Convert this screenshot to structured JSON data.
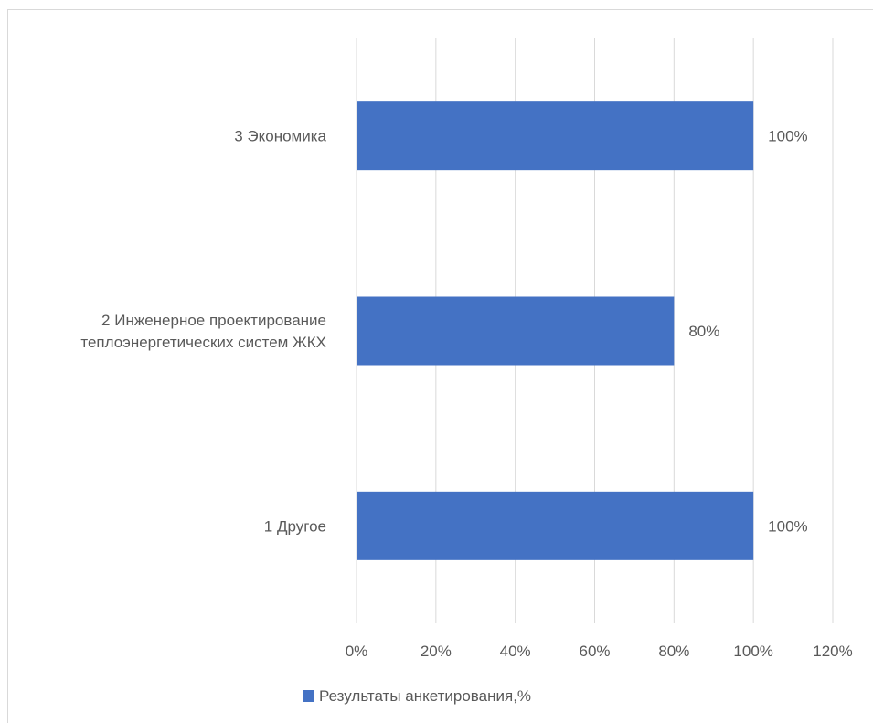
{
  "chart_data": {
    "type": "bar",
    "orientation": "horizontal",
    "categories": [
      "3 Экономика",
      [
        "2 Инженерное проектирование",
        "теплоэнергетических систем ЖКХ"
      ],
      "1 Другое"
    ],
    "series": [
      {
        "name": "Результаты анкетирования,%",
        "values": [
          100,
          80,
          100
        ],
        "data_labels": [
          "100%",
          "80%",
          "100%"
        ],
        "color": "#4472c4"
      }
    ],
    "xlim": [
      0,
      120
    ],
    "x_ticks": [
      0,
      20,
      40,
      60,
      80,
      100,
      120
    ],
    "x_tick_labels": [
      "0%",
      "20%",
      "40%",
      "60%",
      "80%",
      "100%",
      "120%"
    ],
    "grid": true,
    "legend_position": "bottom",
    "title": "",
    "xlabel": "",
    "ylabel": ""
  },
  "colors": {
    "bar": "#4472c4",
    "grid": "#d9d9d9",
    "text": "#595959",
    "frame": "#d9d9d9"
  }
}
